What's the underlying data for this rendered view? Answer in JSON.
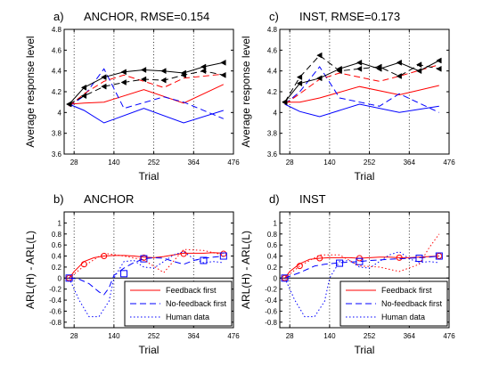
{
  "chart_data": [
    {
      "type": "line",
      "panel_letter": "a)",
      "title": "ANCHOR, RMSE=0.154",
      "xlabel": "Trial",
      "ylabel": "Average response level",
      "xlim": [
        0,
        476
      ],
      "ylim": [
        3.6,
        4.8
      ],
      "xticks": [
        28,
        140,
        252,
        364,
        476
      ],
      "xtick_labels": [
        "28",
        "140",
        "252",
        "364",
        "476"
      ],
      "yticks": [
        3.6,
        3.8,
        4,
        4.2,
        4.4,
        4.6,
        4.8
      ],
      "ytick_labels": [
        "3.6",
        "3.8",
        "4",
        "4.2",
        "4.4",
        "4.6",
        "4.8"
      ],
      "vlines": [
        28,
        140,
        252,
        364
      ],
      "grid": "x dotted",
      "series": [
        {
          "color": "#0000ff",
          "dash": "solid",
          "marker": "none",
          "x": [
            14,
            56,
            112,
            224,
            336,
            448
          ],
          "y": [
            4.08,
            4.02,
            3.9,
            4.04,
            3.9,
            4.02
          ]
        },
        {
          "color": "#ff0000",
          "dash": "solid",
          "marker": "none",
          "x": [
            14,
            56,
            112,
            224,
            336,
            448
          ],
          "y": [
            4.08,
            4.09,
            4.1,
            4.22,
            4.09,
            4.27
          ]
        },
        {
          "color": "#0000ff",
          "dash": "dashed",
          "marker": "none",
          "x": [
            14,
            56,
            112,
            168,
            280,
            336,
            448
          ],
          "y": [
            4.06,
            4.16,
            4.42,
            4.04,
            4.15,
            4.1,
            3.94
          ]
        },
        {
          "color": "#ff0000",
          "dash": "dashed",
          "marker": "none",
          "x": [
            14,
            56,
            112,
            168,
            280,
            336,
            448
          ],
          "y": [
            4.06,
            4.18,
            4.3,
            4.36,
            4.24,
            4.33,
            4.37
          ]
        },
        {
          "color": "#000000",
          "dash": "solid",
          "marker": "triangle-left",
          "x": [
            14,
            56,
            112,
            168,
            224,
            280,
            336,
            392,
            448
          ],
          "y": [
            4.08,
            4.24,
            4.34,
            4.39,
            4.41,
            4.4,
            4.38,
            4.44,
            4.48
          ]
        },
        {
          "color": "#000000",
          "dash": "dashed",
          "marker": "triangle-left",
          "x": [
            14,
            56,
            112,
            168,
            224,
            280,
            336,
            392,
            448
          ],
          "y": [
            4.08,
            4.16,
            4.25,
            4.29,
            4.32,
            4.31,
            4.36,
            4.4,
            4.36
          ]
        }
      ]
    },
    {
      "type": "line",
      "panel_letter": "c)",
      "title": "INST, RMSE=0.173",
      "xlabel": "Trial",
      "ylabel": "Average response level",
      "xlim": [
        0,
        476
      ],
      "ylim": [
        3.6,
        4.8
      ],
      "xticks": [
        28,
        140,
        252,
        364,
        476
      ],
      "xtick_labels": [
        "28",
        "140",
        "252",
        "364",
        "476"
      ],
      "yticks": [
        3.6,
        3.8,
        4,
        4.2,
        4.4,
        4.6,
        4.8
      ],
      "ytick_labels": [
        "3.6",
        "3.8",
        "4",
        "4.2",
        "4.4",
        "4.6",
        "4.8"
      ],
      "vlines": [
        28,
        140,
        252,
        364
      ],
      "grid": "x dotted",
      "series": [
        {
          "color": "#0000ff",
          "dash": "solid",
          "marker": "none",
          "x": [
            14,
            56,
            112,
            224,
            336,
            448
          ],
          "y": [
            4.08,
            4.01,
            3.96,
            4.08,
            4.0,
            4.06
          ]
        },
        {
          "color": "#ff0000",
          "dash": "solid",
          "marker": "none",
          "x": [
            14,
            56,
            112,
            224,
            336,
            448
          ],
          "y": [
            4.1,
            4.1,
            4.14,
            4.25,
            4.17,
            4.26
          ]
        },
        {
          "color": "#0000ff",
          "dash": "dashed",
          "marker": "none",
          "x": [
            14,
            56,
            112,
            168,
            280,
            336,
            448
          ],
          "y": [
            4.08,
            4.2,
            4.44,
            4.14,
            4.06,
            4.18,
            4.0
          ]
        },
        {
          "color": "#ff0000",
          "dash": "dashed",
          "marker": "none",
          "x": [
            14,
            56,
            112,
            168,
            280,
            336,
            448
          ],
          "y": [
            4.08,
            4.18,
            4.32,
            4.38,
            4.3,
            4.35,
            4.46
          ]
        },
        {
          "color": "#000000",
          "dash": "solid",
          "marker": "triangle-left",
          "x": [
            14,
            56,
            112,
            168,
            224,
            280,
            336,
            392,
            448
          ],
          "y": [
            4.1,
            4.28,
            4.33,
            4.42,
            4.48,
            4.42,
            4.48,
            4.4,
            4.5
          ]
        },
        {
          "color": "#000000",
          "dash": "dashed",
          "marker": "triangle-left",
          "x": [
            14,
            56,
            112,
            168,
            224,
            280,
            336,
            392,
            448
          ],
          "y": [
            4.1,
            4.34,
            4.55,
            4.4,
            4.42,
            4.44,
            4.35,
            4.46,
            4.42
          ]
        }
      ]
    },
    {
      "type": "line",
      "panel_letter": "b)",
      "title": "ANCHOR",
      "xlabel": "Trial",
      "ylabel": "ARL(H) - ARL(L)",
      "xlim": [
        0,
        476
      ],
      "ylim": [
        -0.9,
        1.2
      ],
      "xticks": [
        28,
        140,
        252,
        364,
        476
      ],
      "xtick_labels": [
        "28",
        "140",
        "252",
        "364",
        "476"
      ],
      "yticks": [
        -0.8,
        -0.6,
        -0.4,
        -0.2,
        0,
        0.2,
        0.4,
        0.6,
        0.8,
        1
      ],
      "ytick_labels": [
        "-0.8",
        "-0.6",
        "-0.4",
        "-0.2",
        "0",
        "0.2",
        "0.4",
        "0.6",
        "0.8",
        "1"
      ],
      "vlines": [
        28,
        140,
        252,
        364
      ],
      "hlines": [
        0
      ],
      "legend": {
        "position": "bottom-right",
        "entries": [
          "Feedback first",
          "No-feedback first",
          "Human data"
        ]
      },
      "series": [
        {
          "name": "Feedback first",
          "color": "#ff0000",
          "dash": "solid",
          "marker": "none",
          "x": [
            14,
            28,
            56,
            84,
            112,
            140,
            168,
            196,
            224,
            252,
            280,
            308,
            336,
            364,
            392,
            420,
            448
          ],
          "y": [
            0.0,
            0.12,
            0.3,
            0.37,
            0.4,
            0.41,
            0.41,
            0.4,
            0.38,
            0.37,
            0.39,
            0.42,
            0.45,
            0.45,
            0.45,
            0.46,
            0.45
          ]
        },
        {
          "color": "#ff0000",
          "dash": "none",
          "marker": "circle",
          "x": [
            14,
            56,
            112,
            224,
            336,
            448
          ],
          "y": [
            0.0,
            0.25,
            0.4,
            0.37,
            0.44,
            0.44
          ]
        },
        {
          "name": "No-feedback first",
          "color": "#0000ff",
          "dash": "dashed",
          "marker": "none",
          "x": [
            14,
            42,
            70,
            98,
            112,
            126,
            140,
            168,
            196,
            224,
            252,
            280,
            308,
            336,
            364,
            392,
            420,
            448
          ],
          "y": [
            0.0,
            -0.02,
            -0.1,
            -0.25,
            -0.3,
            -0.18,
            0.05,
            0.18,
            0.28,
            0.35,
            0.37,
            0.36,
            0.3,
            0.25,
            0.32,
            0.36,
            0.38,
            0.4
          ]
        },
        {
          "color": "#0000ff",
          "dash": "none",
          "marker": "square",
          "x": [
            14,
            168,
            224,
            392,
            448
          ],
          "y": [
            0.0,
            0.08,
            0.35,
            0.32,
            0.4
          ]
        },
        {
          "name": "Human data",
          "color": "#0000ff",
          "dash": "dotted",
          "marker": "none",
          "x": [
            14,
            42,
            70,
            98,
            126,
            140,
            168,
            196,
            224,
            252,
            280,
            308,
            336,
            364,
            392,
            420,
            448
          ],
          "y": [
            0.0,
            -0.4,
            -0.7,
            -0.7,
            -0.42,
            0.0,
            0.3,
            0.32,
            0.2,
            0.18,
            0.3,
            0.42,
            0.48,
            0.35,
            0.28,
            0.3,
            0.28
          ]
        },
        {
          "color": "#ff0000",
          "dash": "dotted",
          "marker": "none",
          "x": [
            14,
            56,
            112,
            168,
            224,
            280,
            336,
            392,
            448
          ],
          "y": [
            0.0,
            0.22,
            0.45,
            0.4,
            0.33,
            0.1,
            0.52,
            0.5,
            0.42
          ]
        }
      ]
    },
    {
      "type": "line",
      "panel_letter": "d)",
      "title": "INST",
      "xlabel": "Trial",
      "ylabel": "ARL(H) - ARL(L)",
      "xlim": [
        0,
        476
      ],
      "ylim": [
        -0.9,
        1.2
      ],
      "xticks": [
        28,
        140,
        252,
        364,
        476
      ],
      "xtick_labels": [
        "28",
        "140",
        "252",
        "364",
        "476"
      ],
      "yticks": [
        -0.8,
        -0.6,
        -0.4,
        -0.2,
        0,
        0.2,
        0.4,
        0.6,
        0.8,
        1
      ],
      "ytick_labels": [
        "-0.8",
        "-0.6",
        "-0.4",
        "-0.2",
        "0",
        "0.2",
        "0.4",
        "0.6",
        "0.8",
        "1"
      ],
      "vlines": [
        28,
        140,
        252,
        364
      ],
      "hlines": [
        0
      ],
      "legend": {
        "position": "bottom-right",
        "entries": [
          "Feedback first",
          "No-feedback first",
          "Human data"
        ]
      },
      "series": [
        {
          "name": "Feedback first",
          "color": "#ff0000",
          "dash": "solid",
          "marker": "none",
          "x": [
            14,
            28,
            56,
            84,
            112,
            140,
            168,
            196,
            224,
            252,
            280,
            308,
            336,
            364,
            392,
            420,
            448
          ],
          "y": [
            0.0,
            0.12,
            0.26,
            0.34,
            0.36,
            0.37,
            0.37,
            0.37,
            0.36,
            0.37,
            0.38,
            0.38,
            0.37,
            0.37,
            0.38,
            0.39,
            0.4
          ]
        },
        {
          "color": "#ff0000",
          "dash": "none",
          "marker": "circle",
          "x": [
            14,
            56,
            112,
            224,
            336,
            448
          ],
          "y": [
            0.0,
            0.22,
            0.36,
            0.36,
            0.37,
            0.4
          ]
        },
        {
          "name": "No-feedback first",
          "color": "#0000ff",
          "dash": "dashed",
          "marker": "none",
          "x": [
            14,
            56,
            98,
            126,
            140,
            168,
            196,
            224,
            252,
            280,
            308,
            336,
            364,
            392,
            420,
            448
          ],
          "y": [
            0.0,
            0.1,
            0.22,
            0.25,
            0.26,
            0.28,
            0.29,
            0.3,
            0.32,
            0.33,
            0.34,
            0.35,
            0.36,
            0.37,
            0.38,
            0.4
          ]
        },
        {
          "color": "#0000ff",
          "dash": "none",
          "marker": "square",
          "x": [
            14,
            168,
            224,
            392,
            448
          ],
          "y": [
            0.0,
            0.27,
            0.3,
            0.36,
            0.4
          ]
        },
        {
          "name": "Human data",
          "color": "#0000ff",
          "dash": "dotted",
          "marker": "none",
          "x": [
            14,
            42,
            70,
            98,
            126,
            140,
            168,
            196,
            224,
            252,
            280,
            308,
            336,
            364,
            392,
            420,
            448
          ],
          "y": [
            0.0,
            -0.4,
            -0.7,
            -0.7,
            -0.42,
            0.0,
            0.3,
            0.32,
            0.2,
            0.18,
            0.3,
            0.42,
            0.48,
            0.35,
            0.28,
            0.3,
            0.28
          ]
        },
        {
          "color": "#ff0000",
          "dash": "dotted",
          "marker": "none",
          "x": [
            14,
            56,
            112,
            168,
            224,
            280,
            336,
            392,
            420,
            448
          ],
          "y": [
            0.0,
            0.22,
            0.42,
            0.42,
            0.22,
            0.2,
            0.12,
            0.25,
            0.55,
            0.8
          ]
        }
      ]
    }
  ]
}
